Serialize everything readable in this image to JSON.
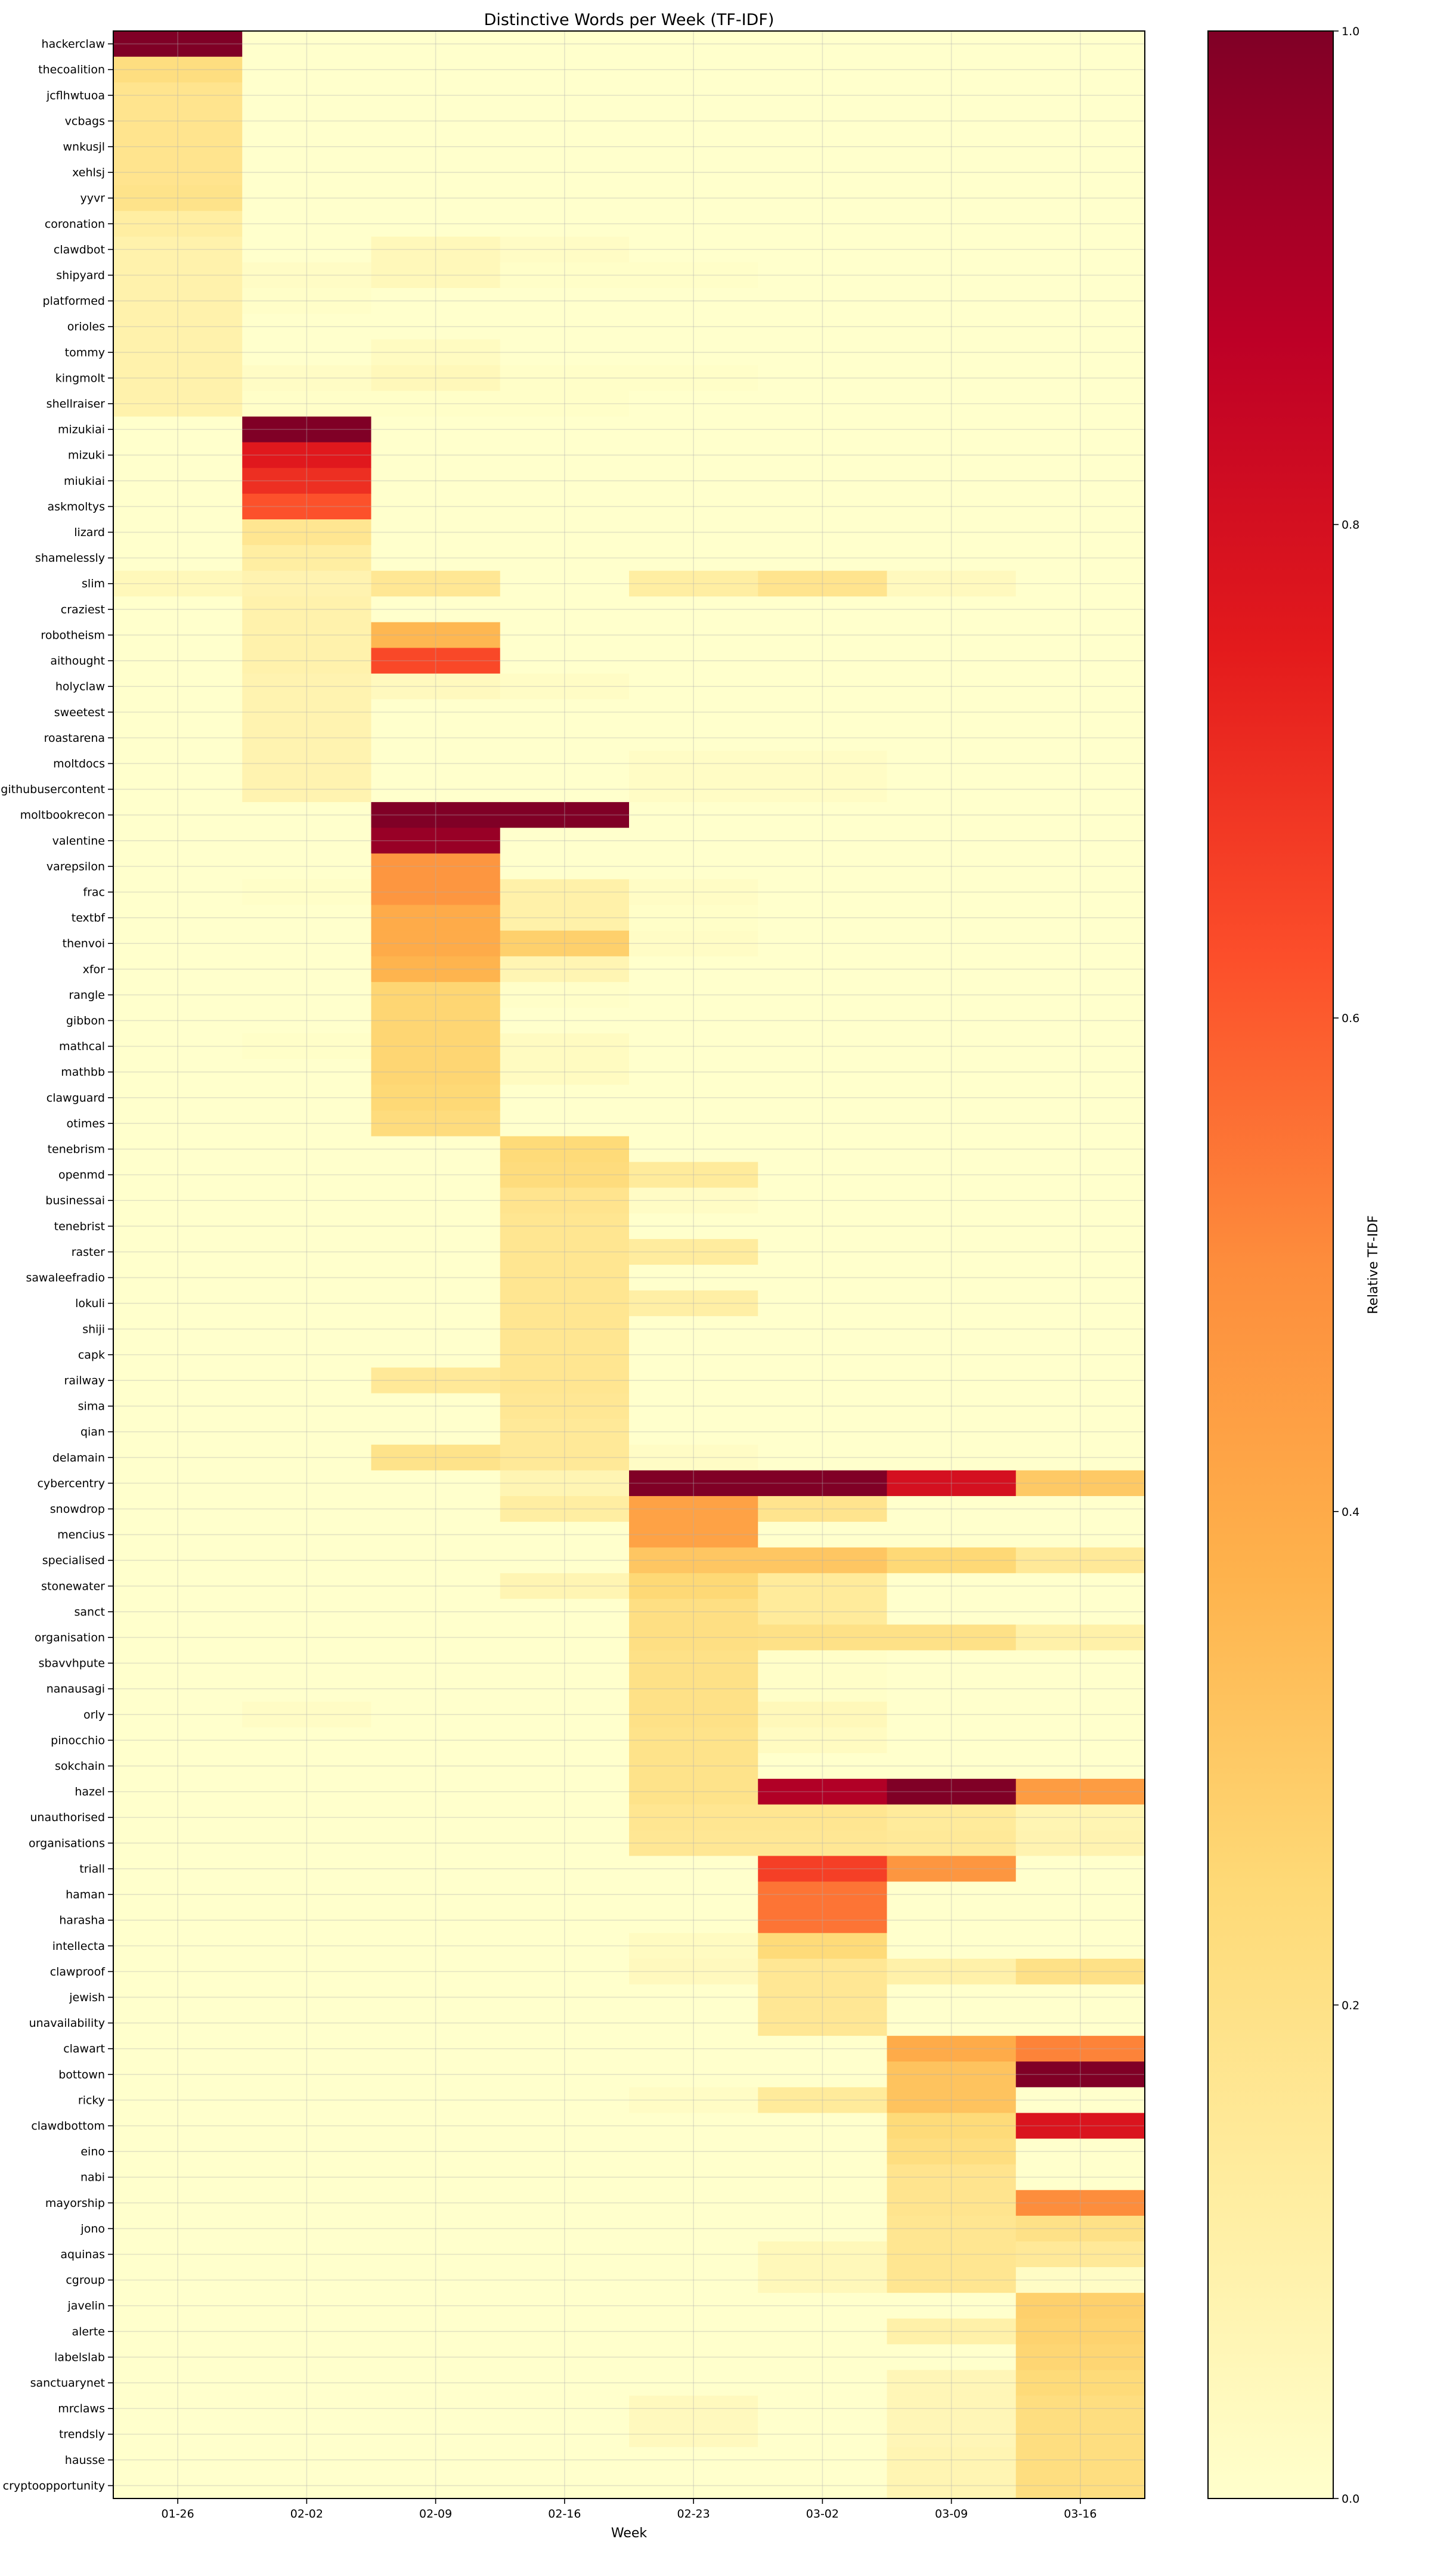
{
  "chart_data": {
    "type": "heatmap",
    "title": "Distinctive Words per Week (TF-IDF)",
    "xlabel": "Week",
    "ylabel": "",
    "colorbar_label": "Relative TF-IDF",
    "colormap": "YlOrRd",
    "colormap_colors": [
      "#ffffcc",
      "#ffeda0",
      "#fed976",
      "#feb24c",
      "#fd8d3c",
      "#fc4e2a",
      "#e31a1c",
      "#bd0026",
      "#800026"
    ],
    "value_range": [
      0.0,
      1.0
    ],
    "colorbar_ticks": [
      "0.0",
      "0.2",
      "0.4",
      "0.6",
      "0.8",
      "1.0"
    ],
    "grid": true,
    "columns": [
      "01-26",
      "02-02",
      "02-09",
      "02-16",
      "02-23",
      "03-02",
      "03-09",
      "03-16"
    ],
    "rows": [
      "hackerclaw",
      "thecoalition",
      "jcflhwtuoa",
      "vcbags",
      "wnkusjl",
      "xehlsj",
      "yyvr",
      "coronation",
      "clawdbot",
      "shipyard",
      "platformed",
      "orioles",
      "tommy",
      "kingmolt",
      "shellraiser",
      "mizukiai",
      "mizuki",
      "miukiai",
      "askmoltys",
      "lizard",
      "shamelessly",
      "slim",
      "craziest",
      "robotheism",
      "aithought",
      "holyclaw",
      "sweetest",
      "roastarena",
      "moltdocs",
      "githubusercontent",
      "moltbookrecon",
      "valentine",
      "varepsilon",
      "frac",
      "textbf",
      "thenvoi",
      "xfor",
      "rangle",
      "gibbon",
      "mathcal",
      "mathbb",
      "clawguard",
      "otimes",
      "tenebrism",
      "openmd",
      "businessai",
      "tenebrist",
      "raster",
      "sawaleefradio",
      "lokuli",
      "shiji",
      "capk",
      "railway",
      "sima",
      "qian",
      "delamain",
      "cybercentry",
      "snowdrop",
      "mencius",
      "specialised",
      "stonewater",
      "sanct",
      "organisation",
      "sbavvhpute",
      "nanausagi",
      "orly",
      "pinocchio",
      "sokchain",
      "hazel",
      "unauthorised",
      "organisations",
      "triall",
      "haman",
      "harasha",
      "intellecta",
      "clawproof",
      "jewish",
      "unavailability",
      "clawart",
      "bottown",
      "ricky",
      "clawdbottom",
      "eino",
      "nabi",
      "mayorship",
      "jono",
      "aquinas",
      "cgroup",
      "javelin",
      "alerte",
      "labelslab",
      "sanctuarynet",
      "mrclaws",
      "trendsly",
      "hausse",
      "cryptoopportunity"
    ],
    "values": [
      [
        1,
        0,
        0,
        0,
        0,
        0,
        0,
        0
      ],
      [
        0.22,
        0,
        0,
        0,
        0,
        0,
        0,
        0
      ],
      [
        0.18,
        0,
        0,
        0,
        0,
        0,
        0,
        0
      ],
      [
        0.18,
        0,
        0,
        0,
        0,
        0,
        0,
        0
      ],
      [
        0.18,
        0,
        0,
        0,
        0,
        0,
        0,
        0
      ],
      [
        0.18,
        0,
        0,
        0,
        0,
        0,
        0,
        0
      ],
      [
        0.19,
        0,
        0,
        0,
        0,
        0,
        0,
        0
      ],
      [
        0.12,
        0,
        0,
        0,
        0,
        0,
        0,
        0
      ],
      [
        0.09,
        0,
        0.05,
        0.02,
        0,
        0,
        0,
        0
      ],
      [
        0.09,
        0.02,
        0.05,
        0.01,
        0.01,
        0,
        0,
        0
      ],
      [
        0.09,
        0.01,
        0,
        0,
        0,
        0,
        0,
        0
      ],
      [
        0.09,
        0,
        0,
        0,
        0,
        0,
        0,
        0
      ],
      [
        0.09,
        0,
        0.03,
        0,
        0,
        0,
        0,
        0
      ],
      [
        0.09,
        0.02,
        0.05,
        0.01,
        0.01,
        0,
        0,
        0
      ],
      [
        0.09,
        0.01,
        0.01,
        0.01,
        0,
        0,
        0,
        0
      ],
      [
        0,
        1,
        0,
        0,
        0,
        0,
        0,
        0
      ],
      [
        0,
        0.76,
        0,
        0,
        0,
        0,
        0,
        0
      ],
      [
        0,
        0.7,
        0,
        0,
        0,
        0,
        0,
        0
      ],
      [
        0,
        0.62,
        0,
        0,
        0,
        0,
        0,
        0
      ],
      [
        0,
        0.17,
        0,
        0,
        0,
        0,
        0,
        0
      ],
      [
        0,
        0.12,
        0,
        0,
        0,
        0,
        0,
        0
      ],
      [
        0.05,
        0.08,
        0.16,
        0,
        0.12,
        0.18,
        0.04,
        0
      ],
      [
        0,
        0.09,
        0,
        0,
        0,
        0,
        0,
        0
      ],
      [
        0,
        0.09,
        0.36,
        0,
        0,
        0,
        0,
        0
      ],
      [
        0,
        0.09,
        0.64,
        0,
        0,
        0,
        0,
        0
      ],
      [
        0,
        0.08,
        0.04,
        0.02,
        0,
        0,
        0,
        0
      ],
      [
        0,
        0.08,
        0,
        0,
        0,
        0,
        0,
        0
      ],
      [
        0,
        0.08,
        0,
        0,
        0,
        0,
        0,
        0
      ],
      [
        0,
        0.08,
        0,
        0,
        0.02,
        0.02,
        0,
        0
      ],
      [
        0,
        0.08,
        0,
        0,
        0.02,
        0.02,
        0,
        0
      ],
      [
        0,
        0,
        1,
        1,
        0,
        0,
        0,
        0
      ],
      [
        0,
        0,
        0.95,
        0,
        0,
        0,
        0,
        0
      ],
      [
        0,
        0,
        0.47,
        0,
        0,
        0,
        0,
        0
      ],
      [
        0,
        0.01,
        0.47,
        0.1,
        0.02,
        0,
        0,
        0
      ],
      [
        0,
        0,
        0.4,
        0.1,
        0.01,
        0,
        0,
        0
      ],
      [
        0,
        0,
        0.4,
        0.28,
        0.02,
        0,
        0,
        0
      ],
      [
        0,
        0,
        0.37,
        0.07,
        0,
        0,
        0,
        0
      ],
      [
        0,
        0,
        0.26,
        0.01,
        0,
        0,
        0,
        0
      ],
      [
        0,
        0,
        0.26,
        0,
        0,
        0,
        0,
        0
      ],
      [
        0,
        0.01,
        0.26,
        0.03,
        0,
        0,
        0,
        0
      ],
      [
        0,
        0,
        0.26,
        0.03,
        0,
        0,
        0,
        0
      ],
      [
        0,
        0,
        0.25,
        0,
        0,
        0,
        0,
        0
      ],
      [
        0,
        0,
        0.23,
        0,
        0,
        0,
        0,
        0
      ],
      [
        0,
        0,
        0,
        0.24,
        0,
        0,
        0,
        0
      ],
      [
        0,
        0,
        0,
        0.23,
        0.14,
        0,
        0,
        0
      ],
      [
        0,
        0,
        0,
        0.18,
        0.02,
        0,
        0,
        0
      ],
      [
        0,
        0,
        0,
        0.17,
        0,
        0,
        0,
        0
      ],
      [
        0,
        0,
        0,
        0.17,
        0.13,
        0,
        0,
        0
      ],
      [
        0,
        0,
        0,
        0.17,
        0,
        0,
        0,
        0
      ],
      [
        0,
        0,
        0,
        0.17,
        0.11,
        0,
        0,
        0
      ],
      [
        0,
        0,
        0,
        0.17,
        0,
        0,
        0,
        0
      ],
      [
        0,
        0,
        0,
        0.17,
        0,
        0,
        0,
        0
      ],
      [
        0,
        0,
        0.15,
        0.17,
        0,
        0,
        0,
        0
      ],
      [
        0,
        0,
        0,
        0.16,
        0,
        0,
        0,
        0
      ],
      [
        0,
        0,
        0,
        0.15,
        0,
        0,
        0,
        0
      ],
      [
        0,
        0,
        0.19,
        0.15,
        0.02,
        0,
        0,
        0
      ],
      [
        0,
        0,
        0,
        0.07,
        1,
        1,
        0.8,
        0.3
      ],
      [
        0,
        0,
        0,
        0.12,
        0.43,
        0.18,
        0,
        0
      ],
      [
        0,
        0,
        0,
        0,
        0.43,
        0,
        0,
        0
      ],
      [
        0,
        0,
        0,
        0,
        0.31,
        0.31,
        0.25,
        0.15
      ],
      [
        0,
        0,
        0,
        0.07,
        0.25,
        0.14,
        0,
        0
      ],
      [
        0,
        0,
        0,
        0,
        0.21,
        0.14,
        0,
        0
      ],
      [
        0,
        0,
        0,
        0,
        0.21,
        0.2,
        0.2,
        0.1
      ],
      [
        0,
        0,
        0,
        0,
        0.2,
        0.01,
        0,
        0
      ],
      [
        0,
        0,
        0,
        0,
        0.2,
        0.01,
        0,
        0
      ],
      [
        0,
        0.02,
        0,
        0,
        0.2,
        0.05,
        0,
        0
      ],
      [
        0,
        0,
        0,
        0,
        0.19,
        0.03,
        0,
        0
      ],
      [
        0,
        0,
        0,
        0,
        0.19,
        0,
        0,
        0
      ],
      [
        0,
        0,
        0,
        0,
        0.19,
        0.9,
        1,
        0.45
      ],
      [
        0,
        0,
        0,
        0,
        0.17,
        0.17,
        0.14,
        0.07
      ],
      [
        0,
        0,
        0,
        0,
        0.16,
        0.16,
        0.15,
        0.08
      ],
      [
        0,
        0,
        0,
        0,
        0,
        0.66,
        0.47,
        0
      ],
      [
        0,
        0,
        0,
        0,
        0,
        0.55,
        0,
        0
      ],
      [
        0,
        0,
        0,
        0,
        0,
        0.55,
        0,
        0
      ],
      [
        0,
        0,
        0,
        0,
        0.03,
        0.24,
        0,
        0
      ],
      [
        0,
        0,
        0,
        0,
        0.04,
        0.16,
        0.1,
        0.2
      ],
      [
        0,
        0,
        0,
        0,
        0,
        0.16,
        0,
        0
      ],
      [
        0,
        0,
        0,
        0,
        0,
        0.16,
        0,
        0
      ],
      [
        0,
        0,
        0,
        0,
        0,
        0,
        0.4,
        0.52
      ],
      [
        0,
        0,
        0,
        0,
        0,
        0,
        0.32,
        1
      ],
      [
        0,
        0,
        0,
        0,
        0.02,
        0.14,
        0.32,
        0
      ],
      [
        0,
        0,
        0,
        0,
        0,
        0,
        0.24,
        0.78
      ],
      [
        0,
        0,
        0,
        0,
        0,
        0,
        0.22,
        0
      ],
      [
        0,
        0,
        0,
        0,
        0,
        0,
        0.18,
        0
      ],
      [
        0,
        0,
        0,
        0,
        0,
        0,
        0.18,
        0.5
      ],
      [
        0,
        0,
        0,
        0,
        0,
        0,
        0.17,
        0.2
      ],
      [
        0,
        0,
        0,
        0,
        0,
        0.05,
        0.17,
        0.15
      ],
      [
        0,
        0,
        0,
        0,
        0,
        0.05,
        0.17,
        0.02
      ],
      [
        0,
        0,
        0,
        0,
        0,
        0,
        0,
        0.28
      ],
      [
        0,
        0,
        0,
        0,
        0,
        0,
        0.1,
        0.27
      ],
      [
        0,
        0,
        0,
        0,
        0,
        0,
        0,
        0.26
      ],
      [
        0,
        0,
        0,
        0,
        0,
        0,
        0.06,
        0.24
      ],
      [
        0,
        0,
        0,
        0,
        0.04,
        0,
        0.06,
        0.22
      ],
      [
        0,
        0,
        0,
        0,
        0.04,
        0,
        0.06,
        0.22
      ],
      [
        0,
        0,
        0,
        0,
        0,
        0,
        0.07,
        0.22
      ],
      [
        0,
        0,
        0,
        0,
        0,
        0,
        0.07,
        0.22
      ]
    ]
  }
}
